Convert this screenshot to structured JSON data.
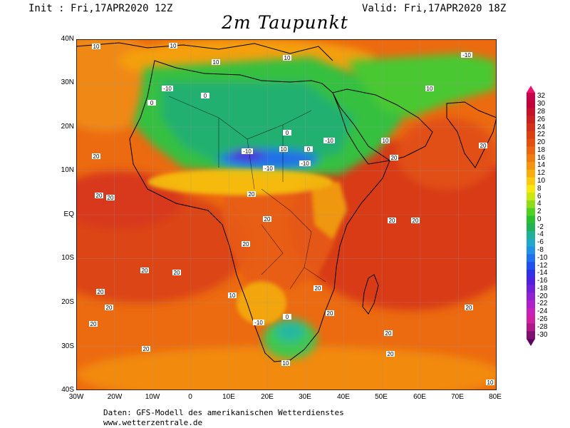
{
  "header": {
    "init": "Init : Fri,17APR2020 12Z",
    "valid": "Valid: Fri,17APR2020 18Z",
    "title": "2m Taupunkt"
  },
  "map": {
    "lat_labels": [
      "40N",
      "30N",
      "20N",
      "10N",
      "EQ",
      "10S",
      "20S",
      "30S",
      "40S"
    ],
    "lon_labels": [
      "30W",
      "20W",
      "10W",
      "0",
      "10E",
      "20E",
      "30E",
      "40E",
      "50E",
      "60E",
      "70E",
      "80E"
    ],
    "contour_labels": [
      "10",
      "20",
      "0",
      "-10"
    ]
  },
  "legend": {
    "levels": [
      "32",
      "30",
      "28",
      "26",
      "24",
      "22",
      "20",
      "18",
      "16",
      "14",
      "12",
      "10",
      "8",
      "6",
      "4",
      "2",
      "0",
      "-2",
      "-4",
      "-6",
      "-8",
      "-10",
      "-12",
      "-14",
      "-16",
      "-18",
      "-20",
      "-22",
      "-24",
      "-26",
      "-28",
      "-30"
    ],
    "colors": [
      "#c8004c",
      "#c2003a",
      "#c8102a",
      "#cc2020",
      "#d43018",
      "#dc4010",
      "#e45010",
      "#ec6610",
      "#f07c10",
      "#f49410",
      "#f8ac10",
      "#fcc810",
      "#f8e810",
      "#c8e810",
      "#90dc18",
      "#50d020",
      "#28c030",
      "#20b058",
      "#20b098",
      "#20a8c8",
      "#2090e8",
      "#2070f0",
      "#2050f0",
      "#3030e8",
      "#5020e0",
      "#7020d8",
      "#9020d0",
      "#b020c8",
      "#c820b8",
      "#d020a0",
      "#b01888",
      "#801070"
    ],
    "top_color": "#f01070",
    "bottom_color": "#600060"
  },
  "footer": {
    "line1": "Daten: GFS-Modell des amerikanischen Wetterdienstes",
    "line2": "www.wetterzentrale.de"
  }
}
